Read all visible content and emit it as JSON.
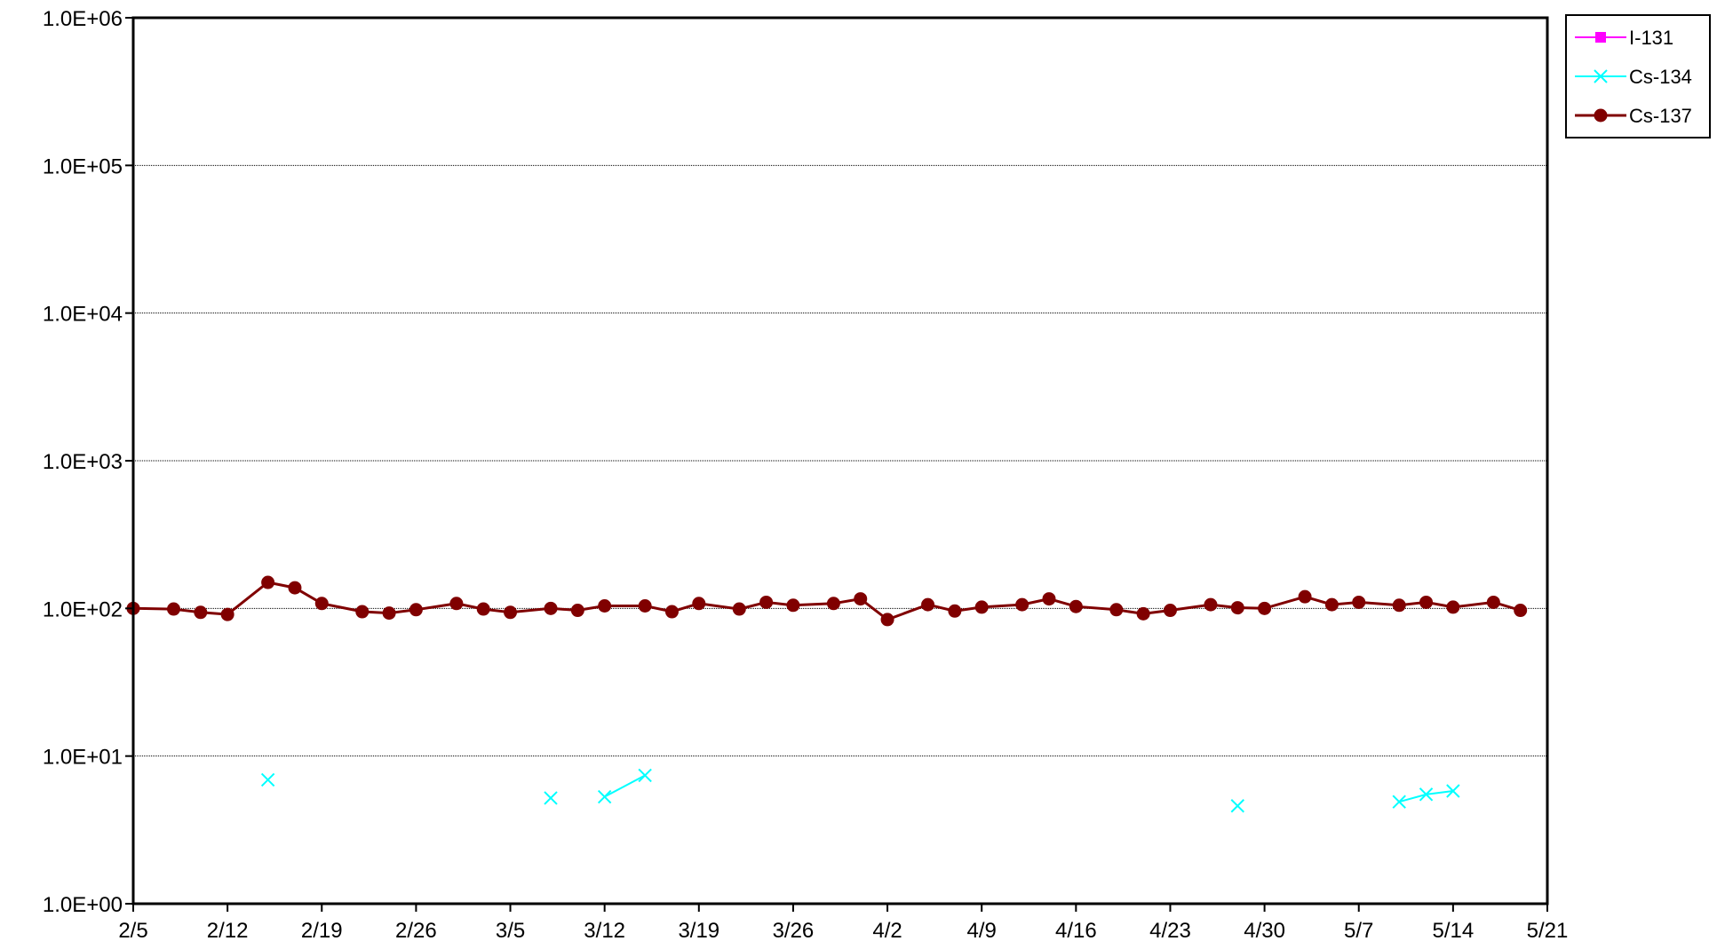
{
  "chart_data": {
    "type": "line",
    "title": "",
    "xlabel": "",
    "ylabel": "",
    "y_scale": "log",
    "ylim": [
      1,
      1000000
    ],
    "y_ticks": [
      1,
      10,
      100,
      1000,
      10000,
      100000,
      1000000
    ],
    "y_tick_labels": [
      "1.0E+00",
      "1.0E+01",
      "1.0E+02",
      "1.0E+03",
      "1.0E+04",
      "1.0E+05",
      "1.0E+06"
    ],
    "xlim": [
      "2/5",
      "5/21"
    ],
    "x_tick_labels": [
      "2/5",
      "2/12",
      "2/19",
      "2/26",
      "3/5",
      "3/12",
      "3/19",
      "3/26",
      "4/2",
      "4/9",
      "4/16",
      "4/23",
      "4/30",
      "5/7",
      "5/14",
      "5/21"
    ],
    "grid": "horizontal major",
    "legend_position": "top-right outside",
    "series": [
      {
        "name": "I-131",
        "color": "#ff00ff",
        "marker": "square",
        "points": []
      },
      {
        "name": "Cs-134",
        "color": "#00ffff",
        "marker": "x",
        "points": [
          [
            "2/15",
            6.9
          ],
          null,
          [
            "3/8",
            5.2
          ],
          null,
          [
            "3/12",
            5.3
          ],
          [
            "3/15",
            7.4
          ],
          null,
          [
            "4/28",
            4.6
          ],
          null,
          [
            "5/10",
            4.9
          ],
          [
            "5/12",
            5.5
          ],
          [
            "5/14",
            5.8
          ]
        ]
      },
      {
        "name": "Cs-137",
        "color": "#800000",
        "marker": "circle",
        "points": [
          [
            "2/5",
            100
          ],
          [
            "2/8",
            99
          ],
          [
            "2/10",
            94
          ],
          [
            "2/12",
            91
          ],
          [
            "2/15",
            150
          ],
          [
            "2/17",
            138
          ],
          [
            "2/19",
            108
          ],
          [
            "2/22",
            95
          ],
          [
            "2/24",
            93
          ],
          [
            "2/26",
            98
          ],
          [
            "3/1",
            108
          ],
          [
            "3/3",
            99
          ],
          [
            "3/5",
            94
          ],
          [
            "3/8",
            100
          ],
          [
            "3/10",
            97
          ],
          [
            "3/12",
            104
          ],
          [
            "3/15",
            104
          ],
          [
            "3/17",
            95
          ],
          [
            "3/19",
            108
          ],
          [
            "3/22",
            99
          ],
          [
            "3/24",
            110
          ],
          [
            "3/26",
            105
          ],
          [
            "3/29",
            108
          ],
          [
            "3/31",
            116
          ],
          [
            "4/2",
            84
          ],
          [
            "4/5",
            106
          ],
          [
            "4/7",
            96
          ],
          [
            "4/9",
            102
          ],
          [
            "4/12",
            106
          ],
          [
            "4/14",
            116
          ],
          [
            "4/16",
            103
          ],
          [
            "4/19",
            98
          ],
          [
            "4/21",
            92
          ],
          [
            "4/23",
            97
          ],
          [
            "4/26",
            106
          ],
          [
            "4/28",
            101
          ],
          [
            "4/30",
            100
          ],
          [
            "5/3",
            120
          ],
          [
            "5/5",
            106
          ],
          [
            "5/7",
            110
          ],
          [
            "5/10",
            105
          ],
          [
            "5/12",
            110
          ],
          [
            "5/14",
            102
          ],
          [
            "5/17",
            110
          ],
          [
            "5/19",
            97
          ]
        ]
      }
    ]
  }
}
